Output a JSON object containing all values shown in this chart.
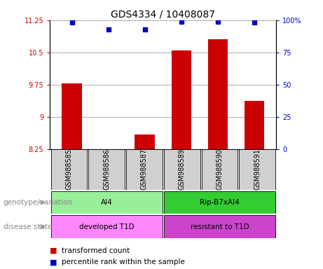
{
  "title": "GDS4334 / 10408087",
  "samples": [
    "GSM988585",
    "GSM988586",
    "GSM988587",
    "GSM988589",
    "GSM988590",
    "GSM988591"
  ],
  "bar_values": [
    9.78,
    8.26,
    8.6,
    10.55,
    10.8,
    9.38
  ],
  "bar_base": 8.25,
  "percentile_values": [
    98,
    93,
    93,
    99,
    99,
    98
  ],
  "ylim_left": [
    8.25,
    11.25
  ],
  "ylim_right": [
    0,
    100
  ],
  "yticks_left": [
    8.25,
    9.0,
    9.75,
    10.5,
    11.25
  ],
  "yticks_right": [
    0,
    25,
    50,
    75,
    100
  ],
  "ytick_labels_left": [
    "8.25",
    "9",
    "9.75",
    "10.5",
    "11.25"
  ],
  "ytick_labels_right": [
    "0",
    "25",
    "50",
    "75",
    "100%"
  ],
  "bar_color": "#cc0000",
  "dot_color": "#0000cc",
  "bg_color": "#ffffff",
  "sample_box_color": "#d0d0d0",
  "genotype_groups": [
    {
      "label": "AI4",
      "samples_idx": [
        0,
        1,
        2
      ],
      "color": "#99ee99"
    },
    {
      "label": "Rip-B7xAI4",
      "samples_idx": [
        3,
        4,
        5
      ],
      "color": "#33cc33"
    }
  ],
  "disease_groups": [
    {
      "label": "developed T1D",
      "samples_idx": [
        0,
        1,
        2
      ],
      "color": "#ff88ff"
    },
    {
      "label": "resistant to T1D",
      "samples_idx": [
        3,
        4,
        5
      ],
      "color": "#cc44cc"
    }
  ],
  "genotype_row_label": "genotype/variation",
  "disease_row_label": "disease state",
  "legend_red_label": "transformed count",
  "legend_blue_label": "percentile rank within the sample",
  "title_fontsize": 10,
  "tick_fontsize": 7,
  "sample_fontsize": 7,
  "label_fontsize": 7.5,
  "legend_fontsize": 7.5,
  "row_label_fontsize": 7.5
}
